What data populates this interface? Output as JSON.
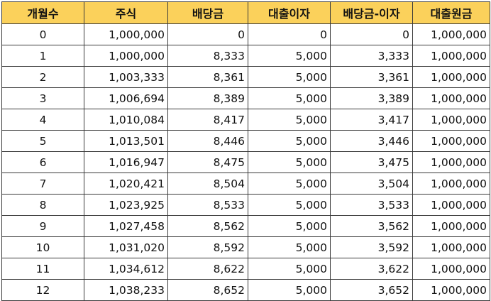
{
  "table": {
    "headers": [
      "개월수",
      "주식",
      "배당금",
      "대출이자",
      "배당금-이자",
      "대출원금"
    ],
    "rows": [
      [
        "0",
        "1,000,000",
        "0",
        "0",
        "0",
        "1,000,000"
      ],
      [
        "1",
        "1,000,000",
        "8,333",
        "5,000",
        "3,333",
        "1,000,000"
      ],
      [
        "2",
        "1,003,333",
        "8,361",
        "5,000",
        "3,361",
        "1,000,000"
      ],
      [
        "3",
        "1,006,694",
        "8,389",
        "5,000",
        "3,389",
        "1,000,000"
      ],
      [
        "4",
        "1,010,084",
        "8,417",
        "5,000",
        "3,417",
        "1,000,000"
      ],
      [
        "5",
        "1,013,501",
        "8,446",
        "5,000",
        "3,446",
        "1,000,000"
      ],
      [
        "6",
        "1,016,947",
        "8,475",
        "5,000",
        "3,475",
        "1,000,000"
      ],
      [
        "7",
        "1,020,421",
        "8,504",
        "5,000",
        "3,504",
        "1,000,000"
      ],
      [
        "8",
        "1,023,925",
        "8,533",
        "5,000",
        "3,533",
        "1,000,000"
      ],
      [
        "9",
        "1,027,458",
        "8,562",
        "5,000",
        "3,562",
        "1,000,000"
      ],
      [
        "10",
        "1,031,020",
        "8,592",
        "5,000",
        "3,592",
        "1,000,000"
      ],
      [
        "11",
        "1,034,612",
        "8,622",
        "5,000",
        "3,622",
        "1,000,000"
      ],
      [
        "12",
        "1,038,233",
        "8,652",
        "5,000",
        "3,652",
        "1,000,000"
      ]
    ]
  },
  "colors": {
    "header_fill": "#fbd15b",
    "border": "#3a3a3a",
    "text": "#111111"
  }
}
